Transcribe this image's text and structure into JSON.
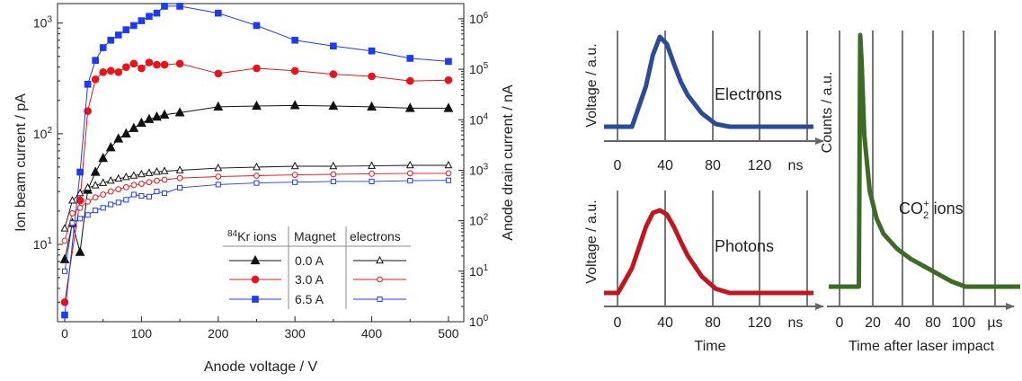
{
  "colors": {
    "black": "#111111",
    "red": "#e8141a",
    "blue": "#1d3cf0",
    "electrons_dark_blue": "#2a4a9a",
    "photons_dark_red": "#c0161f",
    "ions_dark_green": "#3d6b25",
    "grid_gray": "#555555",
    "arrow_gray": "#666666"
  },
  "chart_data": [
    {
      "type": "line",
      "scale": "log",
      "xlabel": "Anode voltage / V",
      "ylabel_left": "Ion beam current / pA",
      "ylabel_right": "Anode drain current / nA",
      "xlim": [
        0,
        520
      ],
      "ylim_left": [
        2,
        1500
      ],
      "ylim_right": [
        1,
        2000000
      ],
      "x_ticks": [
        "0",
        "100",
        "200",
        "300",
        "400",
        "500"
      ],
      "y_ticks_left": [
        {
          "base": "10",
          "exp": "1",
          "value": 10
        },
        {
          "base": "10",
          "exp": "2",
          "value": 100
        },
        {
          "base": "10",
          "exp": "3",
          "value": 1000
        }
      ],
      "y_ticks_right": [
        {
          "base": "10",
          "exp": "0",
          "value": 1
        },
        {
          "base": "10",
          "exp": "1",
          "value": 10
        },
        {
          "base": "10",
          "exp": "2",
          "value": 100
        },
        {
          "base": "10",
          "exp": "3",
          "value": 1000
        },
        {
          "base": "10",
          "exp": "4",
          "value": 10000
        },
        {
          "base": "10",
          "exp": "5",
          "value": 100000
        },
        {
          "base": "10",
          "exp": "6",
          "value": 1000000
        }
      ],
      "legend": {
        "header_ions_sup": "84",
        "header_ions": "Kr ions",
        "header_magnet": "Magnet",
        "header_electrons": "electrons",
        "rows": [
          "0.0 A",
          "3.0 A",
          "6.5 A"
        ]
      },
      "series": [
        {
          "color": "black",
          "marker": "triangle",
          "filled": true,
          "axis": "left",
          "x": [
            0,
            10,
            20,
            30,
            40,
            50,
            60,
            70,
            80,
            90,
            100,
            110,
            120,
            130,
            150,
            200,
            250,
            300,
            350,
            400,
            450,
            500
          ],
          "y": [
            7.3,
            15.5,
            8.5,
            31,
            45,
            60,
            75,
            90,
            100,
            112,
            125,
            135,
            142,
            148,
            155,
            175,
            178,
            180,
            178,
            175,
            170,
            170
          ]
        },
        {
          "color": "red",
          "marker": "circle",
          "filled": true,
          "axis": "left",
          "x": [
            0,
            20,
            30,
            40,
            50,
            60,
            70,
            80,
            90,
            100,
            110,
            120,
            130,
            150,
            200,
            250,
            300,
            350,
            400,
            450,
            500
          ],
          "y": [
            3.0,
            25,
            160,
            310,
            360,
            370,
            360,
            400,
            430,
            390,
            440,
            420,
            420,
            430,
            350,
            390,
            370,
            345,
            330,
            300,
            305
          ]
        },
        {
          "color": "blue",
          "marker": "square",
          "filled": true,
          "axis": "left",
          "x": [
            0,
            20,
            30,
            40,
            50,
            60,
            70,
            80,
            90,
            100,
            110,
            120,
            130,
            150,
            200,
            250,
            300,
            350,
            400,
            450,
            500
          ],
          "y": [
            2.3,
            45,
            280,
            460,
            600,
            700,
            780,
            870,
            950,
            1050,
            1150,
            1230,
            1420,
            1420,
            1230,
            950,
            700,
            620,
            560,
            480,
            450
          ]
        },
        {
          "color": "black",
          "marker": "triangle",
          "filled": false,
          "axis": "right",
          "x": [
            0,
            10,
            20,
            30,
            40,
            50,
            60,
            70,
            80,
            90,
            100,
            110,
            120,
            130,
            150,
            200,
            250,
            300,
            350,
            400,
            450,
            500
          ],
          "y": [
            70,
            250,
            350,
            450,
            500,
            560,
            620,
            680,
            730,
            780,
            830,
            880,
            930,
            960,
            1000,
            1100,
            1150,
            1200,
            1200,
            1220,
            1250,
            1250
          ]
        },
        {
          "color": "red",
          "marker": "circle",
          "filled": false,
          "axis": "right",
          "x": [
            0,
            10,
            20,
            30,
            40,
            50,
            60,
            70,
            80,
            90,
            100,
            110,
            120,
            130,
            150,
            200,
            250,
            300,
            350,
            400,
            450,
            500
          ],
          "y": [
            40,
            140,
            180,
            240,
            290,
            330,
            380,
            420,
            460,
            510,
            540,
            580,
            620,
            650,
            700,
            750,
            780,
            810,
            830,
            850,
            870,
            870
          ]
        },
        {
          "color": "blue",
          "marker": "square",
          "filled": false,
          "axis": "right",
          "x": [
            0,
            10,
            20,
            30,
            40,
            50,
            60,
            70,
            80,
            90,
            100,
            110,
            120,
            130,
            150,
            200,
            250,
            300,
            350,
            400,
            450,
            500
          ],
          "y": [
            10,
            90,
            110,
            130,
            160,
            180,
            210,
            230,
            260,
            330,
            310,
            300,
            380,
            350,
            450,
            520,
            560,
            580,
            600,
            600,
            620,
            630
          ]
        }
      ]
    },
    {
      "type": "line",
      "ylabel": "Voltage / a.u.",
      "x_ticks": [
        "0",
        "40",
        "80",
        "120",
        "ns"
      ],
      "label": "Electrons",
      "color": "electrons_dark_blue",
      "t": [
        0,
        10,
        20,
        30,
        35,
        40,
        45,
        50,
        55,
        60,
        70,
        80,
        90,
        100,
        110,
        120,
        130,
        140,
        150
      ],
      "y": [
        0.0,
        0.0,
        0.0,
        0.45,
        0.8,
        1.0,
        0.92,
        0.7,
        0.5,
        0.35,
        0.15,
        0.03,
        0.0,
        0.0,
        0.0,
        0.0,
        0.0,
        0.0,
        0.0
      ]
    },
    {
      "type": "line",
      "ylabel": "Voltage / a.u.",
      "x_ticks": [
        "0",
        "40",
        "80",
        "120",
        "ns"
      ],
      "xlabel": "Time",
      "label": "Photons",
      "color": "photons_dark_red",
      "t": [
        0,
        10,
        20,
        30,
        35,
        40,
        45,
        50,
        55,
        60,
        70,
        80,
        90,
        100,
        110,
        120,
        130,
        140,
        150
      ],
      "y": [
        0.0,
        0.0,
        0.3,
        0.8,
        0.97,
        1.0,
        0.95,
        0.8,
        0.62,
        0.45,
        0.2,
        0.05,
        0.0,
        0.0,
        0.0,
        0.0,
        0.0,
        0.0,
        0.0
      ]
    },
    {
      "type": "line",
      "ylabel": "Counts / a.u.",
      "x_ticks": [
        "0",
        "20",
        "40",
        "80",
        "100",
        "µs"
      ],
      "xlabel": "Time after laser impact",
      "label_main": "CO",
      "label_sub": "2",
      "label_sup": "+",
      "label_tail": " ions",
      "color": "ions_dark_green",
      "t": [
        0,
        10,
        20,
        22,
        23,
        24,
        26,
        30,
        35,
        40,
        50,
        60,
        70,
        80,
        90,
        100,
        110,
        120,
        130,
        140
      ],
      "y": [
        0.0,
        0.0,
        0.0,
        0.0,
        1.0,
        0.9,
        0.6,
        0.38,
        0.27,
        0.21,
        0.15,
        0.11,
        0.08,
        0.05,
        0.02,
        0.0,
        0.0,
        0.0,
        0.0,
        0.0
      ]
    }
  ]
}
